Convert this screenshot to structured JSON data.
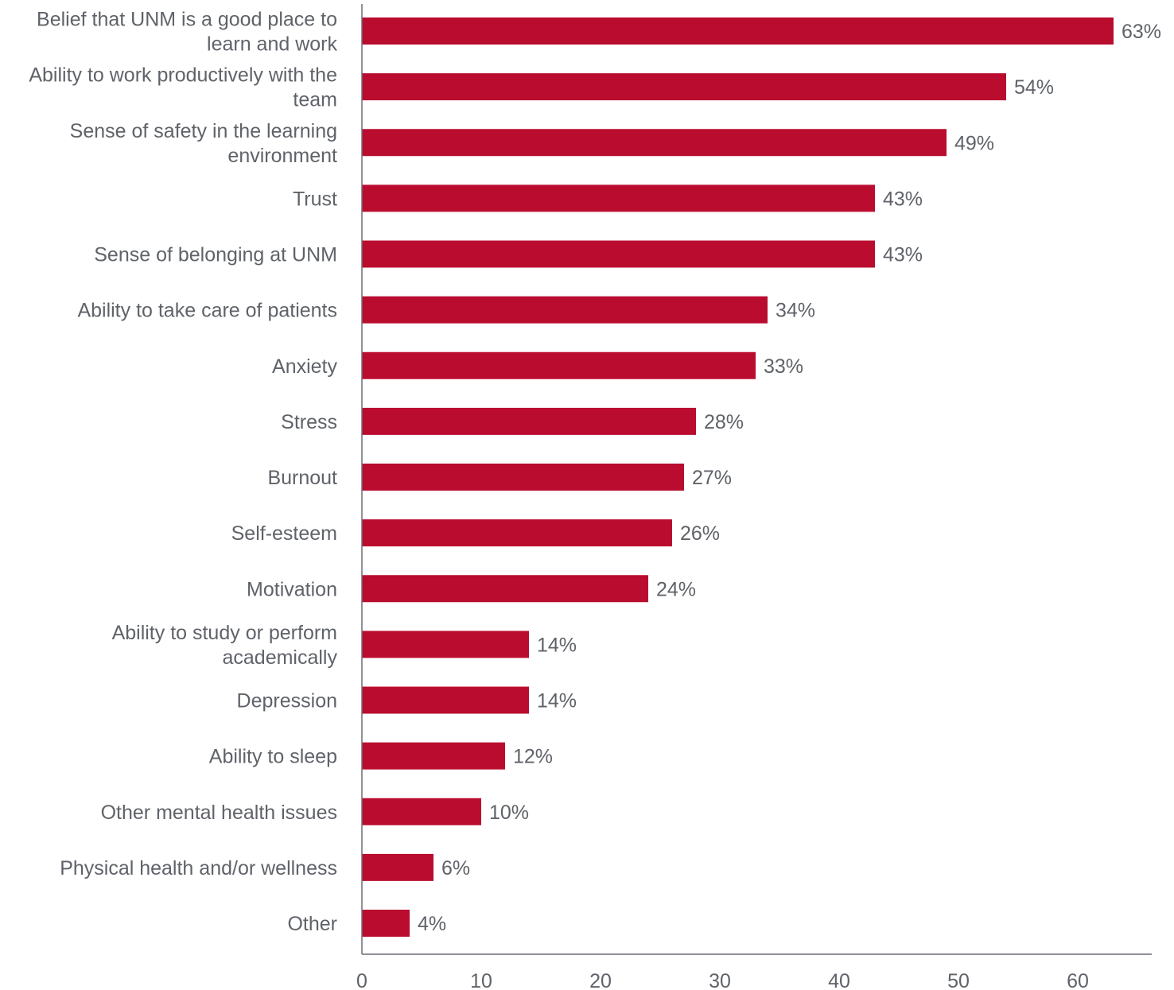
{
  "chart_data": {
    "type": "bar",
    "orientation": "horizontal",
    "title": "",
    "xlabel": "",
    "ylabel": "",
    "categories": [
      "Belief that UNM is a good place to learn and work",
      "Ability to work productively with the team",
      "Sense of safety in the learning environment",
      "Trust",
      "Sense of belonging at UNM",
      "Ability to take care of patients",
      "Anxiety",
      "Stress",
      "Burnout",
      "Self-esteem",
      "Motivation",
      "Ability to study or perform academically",
      "Depression",
      "Ability to sleep",
      "Other mental health issues",
      "Physical health and/or wellness",
      "Other"
    ],
    "category_label_lines": [
      [
        "Belief that UNM is a good place to",
        "learn and work"
      ],
      [
        "Ability to work productively with the",
        "team"
      ],
      [
        "Sense of safety in the learning",
        "environment"
      ],
      [
        "Trust"
      ],
      [
        "Sense of belonging at UNM"
      ],
      [
        "Ability to take care of patients"
      ],
      [
        "Anxiety"
      ],
      [
        "Stress"
      ],
      [
        "Burnout"
      ],
      [
        "Self-esteem"
      ],
      [
        "Motivation"
      ],
      [
        "Ability to study or perform",
        "academically"
      ],
      [
        "Depression"
      ],
      [
        "Ability to sleep"
      ],
      [
        "Other mental health issues"
      ],
      [
        "Physical health and/or wellness"
      ],
      [
        "Other"
      ]
    ],
    "values": [
      63,
      54,
      49,
      43,
      43,
      34,
      33,
      28,
      27,
      26,
      24,
      14,
      14,
      12,
      10,
      6,
      4
    ],
    "value_labels": [
      "63%",
      "54%",
      "49%",
      "43%",
      "43%",
      "34%",
      "33%",
      "28%",
      "27%",
      "26%",
      "24%",
      "14%",
      "14%",
      "12%",
      "10%",
      "6%",
      "4%"
    ],
    "xlim": [
      0,
      66
    ],
    "xticks": [
      0,
      10,
      20,
      30,
      40,
      50,
      60
    ],
    "xtick_labels": [
      "0",
      "10",
      "20",
      "30",
      "40",
      "50",
      "60"
    ],
    "grid": false,
    "legend": "none",
    "bar_color": "#ba0c2f",
    "text_color": "#5f6369",
    "axis_color": "#6a6e74"
  }
}
